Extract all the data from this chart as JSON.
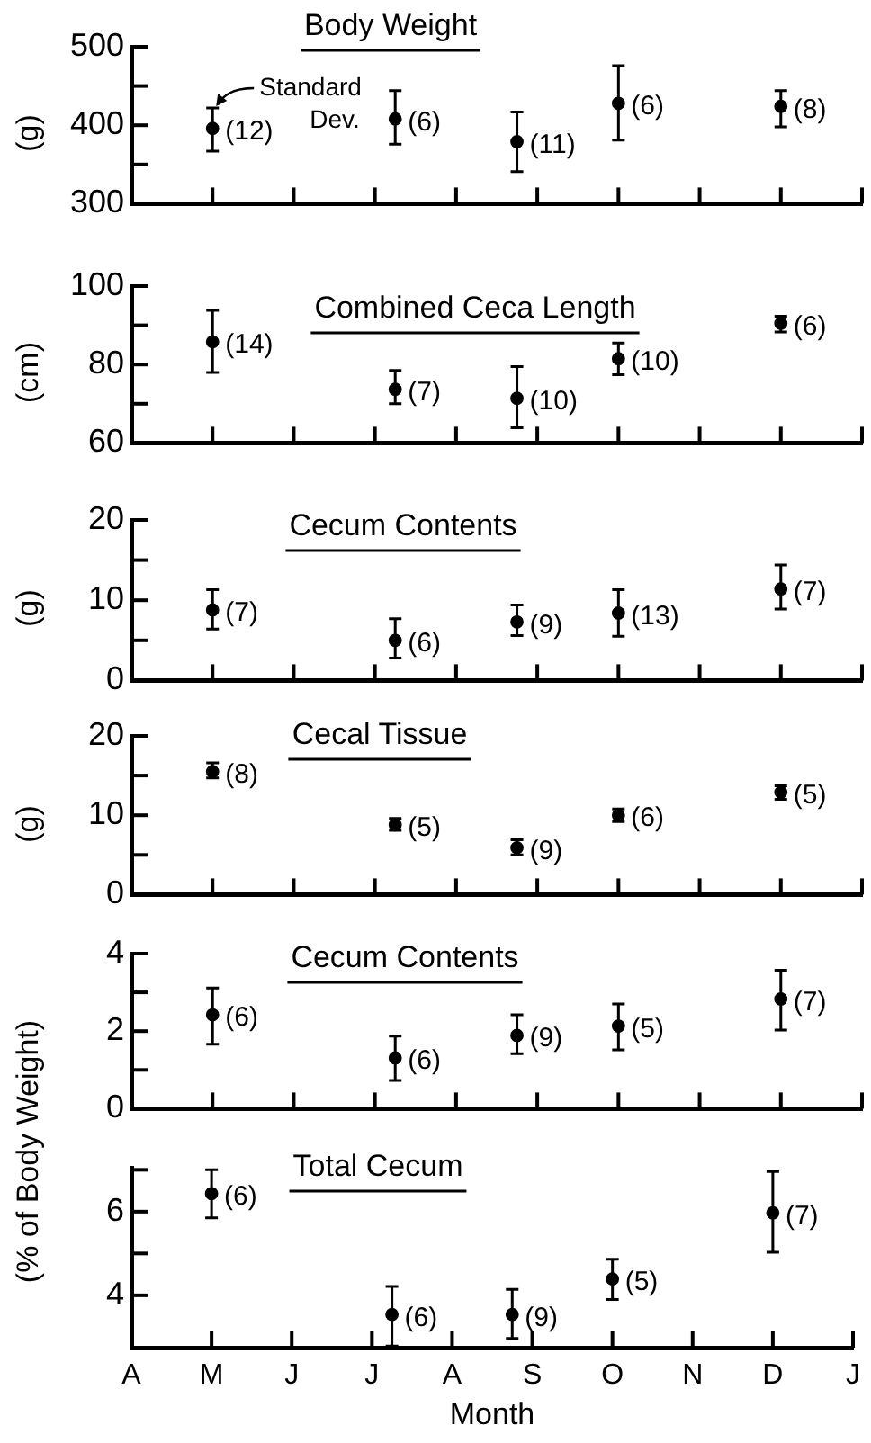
{
  "chart_data": [
    {
      "type": "scatter",
      "title": "Body Weight",
      "ylabel": "(g)",
      "categories": [
        "A",
        null,
        null,
        null,
        "M",
        null,
        null,
        null,
        "J",
        null,
        null,
        null,
        "J",
        null,
        null,
        null,
        "A",
        null,
        null,
        null,
        "S",
        null,
        null,
        null,
        "O",
        null,
        null,
        null,
        "N",
        null,
        null,
        null,
        "D",
        null,
        null,
        null,
        "J"
      ],
      "ylim": [
        300,
        500
      ],
      "yticks": [
        300,
        {
          "value": 350,
          "label": null
        },
        400,
        {
          "value": 450,
          "label": null
        },
        500
      ],
      "series": [
        {
          "color": "#000000",
          "values": [
            null,
            null,
            null,
            null,
            396,
            null,
            null,
            null,
            null,
            null,
            null,
            null,
            null,
            408,
            null,
            null,
            null,
            null,
            null,
            379,
            null,
            null,
            null,
            null,
            428,
            null,
            null,
            null,
            null,
            null,
            null,
            null,
            424,
            null,
            null,
            null,
            null
          ],
          "errors": [
            null,
            null,
            null,
            null,
            [
              367,
              422
            ],
            null,
            null,
            null,
            null,
            null,
            null,
            null,
            null,
            [
              376,
              444
            ],
            null,
            null,
            null,
            null,
            null,
            [
              341,
              417
            ],
            null,
            null,
            null,
            null,
            [
              381,
              476
            ],
            null,
            null,
            null,
            null,
            null,
            null,
            null,
            [
              398,
              444
            ],
            null,
            null,
            null,
            null
          ]
        }
      ],
      "marker": "circle",
      "grid": false,
      "tick_labels": "y",
      "annotations": [
        {
          "text": "Standard Dev.",
          "x": "M",
          "y": 422
        },
        {
          "text": "(12)",
          "x": "M",
          "y": 396
        },
        "(6)",
        "(11)",
        {
          "text": "(6)",
          "x": "O",
          "y": 428
        },
        {
          "text": "(8)",
          "x": "D",
          "y": 424
        }
      ]
    },
    {
      "type": "scatter",
      "title": "Combined Ceca Length",
      "ylabel": "(cm)",
      "categories": [
        "A",
        null,
        null,
        null,
        "M",
        null,
        null,
        null,
        "J",
        null,
        null,
        null,
        "J",
        null,
        null,
        null,
        "A",
        null,
        null,
        null,
        "S",
        null,
        null,
        null,
        "O",
        null,
        null,
        null,
        "N",
        null,
        null,
        null,
        "D",
        null,
        null,
        null,
        "J"
      ],
      "ylim": [
        60,
        100
      ],
      "yticks": [
        60,
        {
          "value": 70,
          "label": null
        },
        80,
        {
          "value": 90,
          "label": null
        },
        100
      ],
      "series": [
        {
          "color": "#000000",
          "values": [
            null,
            null,
            null,
            null,
            85.8,
            null,
            null,
            null,
            null,
            null,
            null,
            null,
            null,
            73.7,
            null,
            null,
            null,
            null,
            null,
            71.4,
            null,
            null,
            null,
            null,
            81.5,
            null,
            null,
            null,
            null,
            null,
            null,
            null,
            90.5,
            null,
            null,
            null,
            null
          ],
          "errors": [
            null,
            null,
            null,
            null,
            [
              78,
              93.8
            ],
            null,
            null,
            null,
            null,
            null,
            null,
            null,
            null,
            [
              70,
              78.5
            ],
            null,
            null,
            null,
            null,
            null,
            [
              63.9,
              79.5
            ],
            null,
            null,
            null,
            null,
            [
              77.4,
              85.5
            ],
            null,
            null,
            null,
            null,
            null,
            null,
            null,
            [
              88.3,
              92.3
            ],
            null,
            null,
            null,
            null
          ]
        }
      ],
      "marker": "circle",
      "grid": false,
      "tick_labels": "y",
      "annotations": [
        {
          "text": "(14)",
          "x": "M",
          "y": 85.8
        },
        "(7)",
        "(10)",
        {
          "text": "(10)",
          "x": "O",
          "y": 81.5
        },
        {
          "text": "(6)",
          "x": "D",
          "y": 90.5
        }
      ]
    },
    {
      "type": "scatter",
      "title": "Cecum Contents",
      "ylabel": "(g)",
      "categories": [
        "A",
        null,
        null,
        null,
        "M",
        null,
        null,
        null,
        "J",
        null,
        null,
        null,
        "J",
        null,
        null,
        null,
        "A",
        null,
        null,
        null,
        "S",
        null,
        null,
        null,
        "O",
        null,
        null,
        null,
        "N",
        null,
        null,
        null,
        "D",
        null,
        null,
        null,
        "J"
      ],
      "ylim": [
        0,
        20
      ],
      "yticks": [
        0,
        {
          "value": 5,
          "label": null
        },
        10,
        {
          "value": 15,
          "label": null
        },
        20
      ],
      "series": [
        {
          "color": "#000000",
          "values": [
            null,
            null,
            null,
            null,
            8.8,
            null,
            null,
            null,
            null,
            null,
            null,
            null,
            null,
            5.0,
            null,
            null,
            null,
            null,
            null,
            7.3,
            null,
            null,
            null,
            null,
            8.4,
            null,
            null,
            null,
            null,
            null,
            null,
            null,
            11.4,
            null,
            null,
            null,
            null
          ],
          "errors": [
            null,
            null,
            null,
            null,
            [
              6.4,
              11.3
            ],
            null,
            null,
            null,
            null,
            null,
            null,
            null,
            null,
            [
              2.8,
              7.7
            ],
            null,
            null,
            null,
            null,
            null,
            [
              5.6,
              9.4
            ],
            null,
            null,
            null,
            null,
            [
              5.5,
              11.3
            ],
            null,
            null,
            null,
            null,
            null,
            null,
            null,
            [
              8.9,
              14.4
            ],
            null,
            null,
            null,
            null
          ]
        }
      ],
      "marker": "circle",
      "grid": false,
      "tick_labels": "y",
      "annotations": [
        {
          "text": "(7)",
          "x": "M",
          "y": 8.8
        },
        "(6)",
        "(9)",
        {
          "text": "(13)",
          "x": "O",
          "y": 8.4
        },
        {
          "text": "(7)",
          "x": "D",
          "y": 11.4
        }
      ]
    },
    {
      "type": "scatter",
      "title": "Cecal Tissue",
      "ylabel": "(g)",
      "categories": [
        "A",
        null,
        null,
        null,
        "M",
        null,
        null,
        null,
        "J",
        null,
        null,
        null,
        "J",
        null,
        null,
        null,
        "A",
        null,
        null,
        null,
        "S",
        null,
        null,
        null,
        "O",
        null,
        null,
        null,
        "N",
        null,
        null,
        null,
        "D",
        null,
        null,
        null,
        "J"
      ],
      "ylim": [
        0,
        20
      ],
      "yticks": [
        0,
        {
          "value": 5,
          "label": null
        },
        10,
        {
          "value": 15,
          "label": null
        },
        20
      ],
      "series": [
        {
          "color": "#000000",
          "values": [
            null,
            null,
            null,
            null,
            15.5,
            null,
            null,
            null,
            null,
            null,
            null,
            null,
            null,
            8.8,
            null,
            null,
            null,
            null,
            null,
            5.9,
            null,
            null,
            null,
            null,
            10.0,
            null,
            null,
            null,
            null,
            null,
            null,
            null,
            12.9,
            null,
            null,
            null,
            null
          ],
          "errors": [
            null,
            null,
            null,
            null,
            [
              14.7,
              16.6
            ],
            null,
            null,
            null,
            null,
            null,
            null,
            null,
            null,
            [
              8.1,
              9.6
            ],
            null,
            null,
            null,
            null,
            null,
            [
              5.0,
              6.9
            ],
            null,
            null,
            null,
            null,
            [
              9.2,
              10.8
            ],
            null,
            null,
            null,
            null,
            null,
            null,
            null,
            [
              12.0,
              13.7
            ],
            null,
            null,
            null,
            null
          ]
        }
      ],
      "marker": "circle",
      "grid": false,
      "tick_labels": "y",
      "annotations": [
        {
          "text": "(8)",
          "x": "M",
          "y": 15.5
        },
        "(5)",
        "(9)",
        {
          "text": "(6)",
          "x": "O",
          "y": 10.0
        },
        {
          "text": "(5)",
          "x": "D",
          "y": 12.9
        }
      ]
    },
    {
      "type": "scatter",
      "title": "Cecum Contents",
      "ylabel": "(% of Body Weight)",
      "categories": [
        "A",
        null,
        null,
        null,
        "M",
        null,
        null,
        null,
        "J",
        null,
        null,
        null,
        "J",
        null,
        null,
        null,
        "A",
        null,
        null,
        null,
        "S",
        null,
        null,
        null,
        "O",
        null,
        null,
        null,
        "N",
        null,
        null,
        null,
        "D",
        null,
        null,
        null,
        "J"
      ],
      "ylim": [
        0,
        4
      ],
      "yticks": [
        0,
        {
          "value": 1,
          "label": null
        },
        2,
        {
          "value": 3,
          "label": null
        },
        4
      ],
      "series": [
        {
          "color": "#000000",
          "values": [
            null,
            null,
            null,
            null,
            2.42,
            null,
            null,
            null,
            null,
            null,
            null,
            null,
            null,
            1.31,
            null,
            null,
            null,
            null,
            null,
            1.89,
            null,
            null,
            null,
            null,
            2.13,
            null,
            null,
            null,
            null,
            null,
            null,
            null,
            2.83,
            null,
            null,
            null,
            null
          ],
          "errors": [
            null,
            null,
            null,
            null,
            [
              1.66,
              3.11
            ],
            null,
            null,
            null,
            null,
            null,
            null,
            null,
            null,
            [
              0.73,
              1.87
            ],
            null,
            null,
            null,
            null,
            null,
            [
              1.42,
              2.42
            ],
            null,
            null,
            null,
            null,
            [
              1.52,
              2.7
            ],
            null,
            null,
            null,
            null,
            null,
            null,
            null,
            [
              2.03,
              3.57
            ],
            null,
            null,
            null,
            null
          ]
        }
      ],
      "marker": "circle",
      "grid": false,
      "tick_labels": "y",
      "annotations": [
        {
          "text": "(6)",
          "x": "M",
          "y": 2.42
        },
        "(6)",
        "(9)",
        {
          "text": "(5)",
          "x": "O",
          "y": 2.13
        },
        {
          "text": "(7)",
          "x": "D",
          "y": 2.83
        }
      ]
    },
    {
      "type": "scatter",
      "title": "Total Cecum",
      "xlabel": "Month",
      "categories": [
        "A",
        null,
        null,
        null,
        "M",
        null,
        null,
        null,
        "J",
        null,
        null,
        null,
        "J",
        null,
        null,
        null,
        "A",
        null,
        null,
        null,
        "S",
        null,
        null,
        null,
        "O",
        null,
        null,
        null,
        "N",
        null,
        null,
        null,
        "D",
        null,
        null,
        null,
        "J"
      ],
      "ylim": [
        2.75,
        7.05
      ],
      "yticks": [
        4,
        {
          "value": 5,
          "label": null
        },
        6,
        {
          "value": 7,
          "label": null
        }
      ],
      "series": [
        {
          "color": "#000000",
          "values": [
            null,
            null,
            null,
            null,
            6.43,
            null,
            null,
            null,
            null,
            null,
            null,
            null,
            null,
            3.54,
            null,
            null,
            null,
            null,
            null,
            3.54,
            null,
            null,
            null,
            null,
            4.39,
            null,
            null,
            null,
            null,
            null,
            null,
            null,
            5.97,
            null,
            null,
            null,
            null
          ],
          "errors": [
            null,
            null,
            null,
            null,
            [
              5.85,
              7.0
            ],
            null,
            null,
            null,
            null,
            null,
            null,
            null,
            null,
            [
              2.79,
              4.21
            ],
            null,
            null,
            null,
            null,
            null,
            [
              2.97,
              4.14
            ],
            null,
            null,
            null,
            null,
            [
              3.9,
              4.86
            ],
            null,
            null,
            null,
            null,
            null,
            null,
            null,
            [
              5.03,
              6.96
            ],
            null,
            null,
            null,
            null
          ]
        }
      ],
      "marker": "circle",
      "grid": false,
      "annotations": [
        {
          "text": "(6)",
          "x": "M",
          "y": 6.43
        },
        "(6)",
        "(9)",
        {
          "text": "(5)",
          "x": "O",
          "y": 4.39
        },
        {
          "text": "(7)",
          "x": "D",
          "y": 5.97
        }
      ]
    }
  ]
}
